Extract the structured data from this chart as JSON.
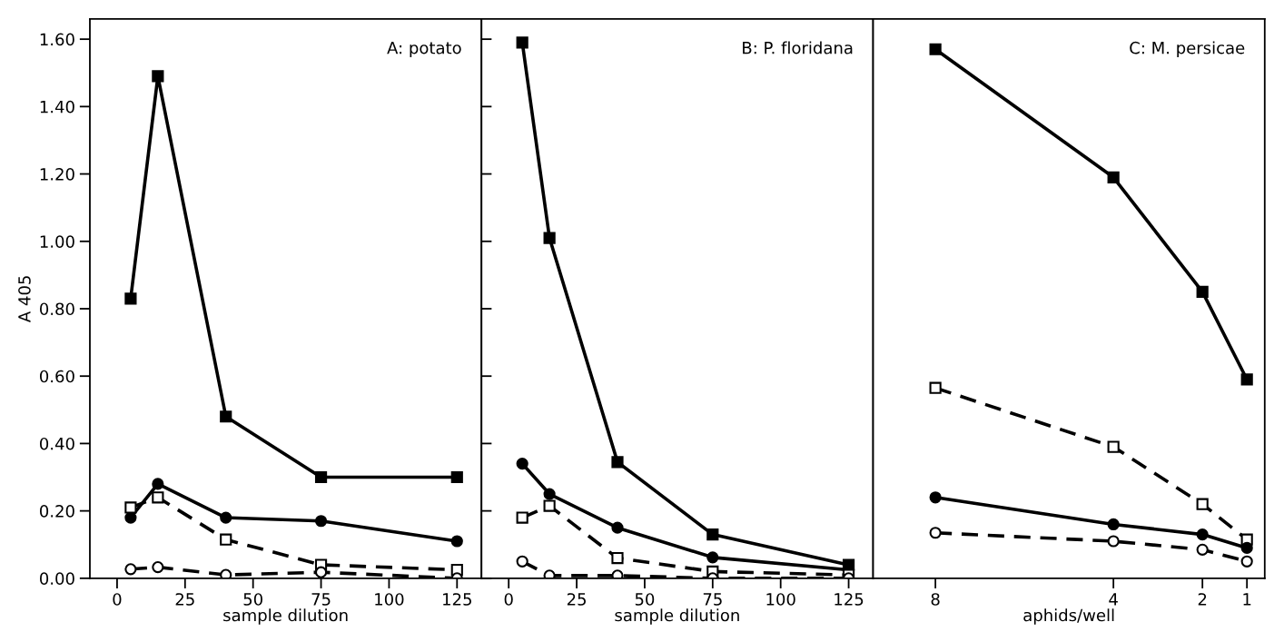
{
  "chart_data": [
    {
      "type": "line",
      "title": "A: potato",
      "xlabel": "sample dilution",
      "ylabel": "A 405",
      "x": [
        5,
        15,
        40,
        75,
        125
      ],
      "xlim": [
        -10,
        134
      ],
      "xticks": [
        0,
        25,
        50,
        75,
        100,
        125
      ],
      "ylim": [
        0,
        1.66
      ],
      "yticks": [
        {
          "value": 0,
          "label": "0.00"
        },
        {
          "value": 0.2,
          "label": "0.20"
        },
        {
          "value": 0.4,
          "label": "0.40"
        },
        {
          "value": 0.6,
          "label": "0.60"
        },
        {
          "value": 0.8,
          "label": "0.80"
        },
        {
          "value": 1.0,
          "label": "1.00"
        },
        {
          "value": 1.2,
          "label": "1.20"
        },
        {
          "value": 1.4,
          "label": "1.40"
        },
        {
          "value": 1.6,
          "label": "1.60"
        }
      ],
      "grid": false,
      "series": [
        {
          "color": "#000000",
          "marker": "square",
          "line_style": "solid",
          "values": [
            0.83,
            1.49,
            0.48,
            0.3,
            0.3
          ]
        },
        {
          "color": "#000000",
          "marker": "circle",
          "line_style": "solid",
          "values": [
            0.18,
            0.28,
            0.18,
            0.17,
            0.11
          ]
        },
        {
          "color": "#000000",
          "marker": "square",
          "line_style": "dashed",
          "values": [
            0.21,
            0.24,
            0.115,
            0.04,
            0.025
          ]
        },
        {
          "color": "#000000",
          "marker": "circle",
          "line_style": "dashed",
          "values": [
            0.027,
            0.033,
            0.01,
            0.018,
            0.0
          ]
        }
      ]
    },
    {
      "type": "line",
      "title": "B: P. floridana",
      "xlabel": "sample dilution",
      "x": [
        5,
        15,
        40,
        75,
        125
      ],
      "xlim": [
        -10,
        134
      ],
      "xticks": [
        0,
        25,
        50,
        75,
        100,
        125
      ],
      "ylim": [
        0,
        1.66
      ],
      "yticks": [
        {
          "value": 0,
          "label": null
        },
        {
          "value": 0.2,
          "label": null
        },
        {
          "value": 0.4,
          "label": null
        },
        {
          "value": 0.6,
          "label": null
        },
        {
          "value": 0.8,
          "label": null
        },
        {
          "value": 1.0,
          "label": null
        },
        {
          "value": 1.2,
          "label": null
        },
        {
          "value": 1.4,
          "label": null
        },
        {
          "value": 1.6,
          "label": null
        }
      ],
      "tick_labels": "x",
      "grid": false,
      "series": [
        {
          "color": "#000000",
          "marker": "square",
          "line_style": "solid",
          "values": [
            1.59,
            1.01,
            0.345,
            0.13,
            0.04
          ]
        },
        {
          "color": "#000000",
          "marker": "circle",
          "line_style": "solid",
          "values": [
            0.34,
            0.25,
            0.15,
            0.062,
            0.025
          ]
        },
        {
          "color": "#000000",
          "marker": "square",
          "line_style": "dashed",
          "values": [
            0.18,
            0.215,
            0.06,
            0.02,
            0.01
          ]
        },
        {
          "color": "#000000",
          "marker": "circle",
          "line_style": "dashed",
          "values": [
            0.05,
            0.008,
            0.008,
            0.0,
            0.0
          ]
        }
      ]
    },
    {
      "type": "line",
      "title": "C: M. persicae",
      "xlabel": "aphids/well",
      "x": [
        8,
        4,
        2,
        1
      ],
      "xlim": [
        9.4,
        0.6
      ],
      "xticks": [
        8,
        4,
        2,
        1
      ],
      "ylim": [
        0,
        1.66
      ],
      "tick_labels": "x",
      "grid": false,
      "series": [
        {
          "color": "#000000",
          "marker": "square",
          "line_style": "solid",
          "values": [
            1.57,
            1.19,
            0.85,
            0.59
          ]
        },
        {
          "color": "#000000",
          "marker": "square",
          "line_style": "dashed",
          "values": [
            0.565,
            0.39,
            0.22,
            0.115
          ]
        },
        {
          "color": "#000000",
          "marker": "circle",
          "line_style": "solid",
          "values": [
            0.24,
            0.16,
            0.13,
            0.09
          ]
        },
        {
          "color": "#000000",
          "marker": "circle",
          "line_style": "dashed",
          "values": [
            0.135,
            0.11,
            0.085,
            0.05
          ]
        }
      ]
    }
  ]
}
